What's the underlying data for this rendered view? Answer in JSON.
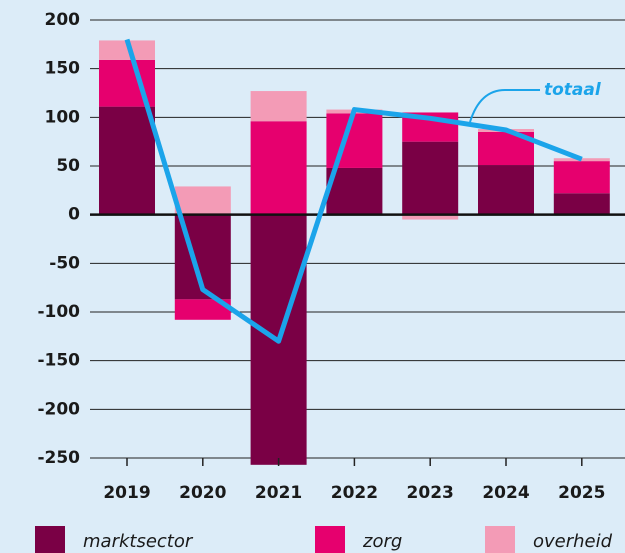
{
  "chart_data": {
    "type": "bar",
    "stacked": true,
    "categories": [
      "2019",
      "2020",
      "2021",
      "2022",
      "2023",
      "2024",
      "2025"
    ],
    "series": [
      {
        "name": "marktsector",
        "color": "#7a0045",
        "values": [
          111,
          -87,
          -257,
          48,
          75,
          51,
          22
        ]
      },
      {
        "name": "zorg",
        "color": "#e6006e",
        "values": [
          48,
          -21,
          96,
          56,
          30,
          34,
          33
        ]
      },
      {
        "name": "overheid",
        "color": "#f39bb6",
        "values": [
          20,
          29,
          31,
          4,
          -5,
          3,
          3
        ]
      }
    ],
    "line_series": {
      "name": "totaal",
      "color": "#1ba4ea",
      "values": [
        180,
        -77,
        -130,
        108,
        99,
        87,
        57
      ]
    },
    "ylim": [
      -250,
      200
    ],
    "yticks": [
      -250,
      -200,
      -150,
      -100,
      -50,
      0,
      50,
      100,
      150,
      200
    ],
    "grid": true
  }
}
